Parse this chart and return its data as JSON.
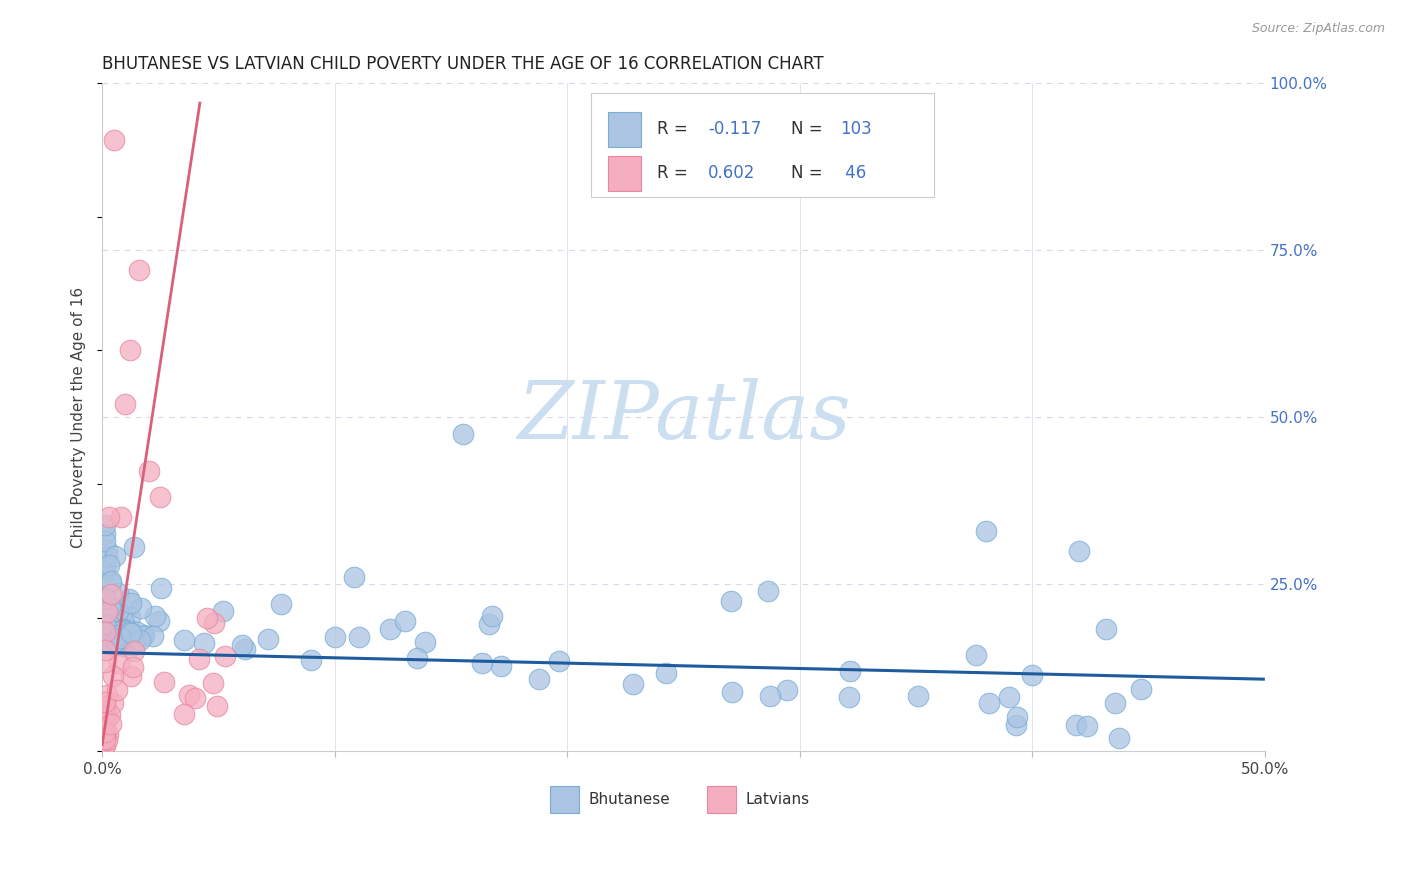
{
  "title": "BHUTANESE VS LATVIAN CHILD POVERTY UNDER THE AGE OF 16 CORRELATION CHART",
  "source": "Source: ZipAtlas.com",
  "ylabel": "Child Poverty Under the Age of 16",
  "xlim": [
    0.0,
    0.5
  ],
  "ylim": [
    0.0,
    1.0
  ],
  "bhutanese_color": "#aac4e2",
  "latvian_color": "#f5aec0",
  "bhutanese_edge": "#7aaed6",
  "latvian_edge": "#e888a0",
  "trend_blue": "#1f5c9e",
  "trend_pink": "#d9607a",
  "watermark_color": "#ccdff0",
  "background_color": "#ffffff",
  "grid_color": "#d8d8e8",
  "right_axis_color": "#4472c4",
  "title_color": "#222222",
  "source_color": "#999999",
  "bhutanese_label": "Bhutanese",
  "latvian_label": "Latvians",
  "legend_r1": "R = -0.117",
  "legend_n1": "N = 103",
  "legend_r2": "R = 0.602",
  "legend_n2": "N =  46",
  "r1_val": "-0.117",
  "n1_val": "103",
  "r2_val": "0.602",
  "n2_val": " 46",
  "blue_trend_x": [
    0.0,
    0.5
  ],
  "blue_trend_y": [
    0.148,
    0.108
  ],
  "pink_trend_x": [
    0.0,
    0.042
  ],
  "pink_trend_y": [
    0.01,
    0.97
  ]
}
